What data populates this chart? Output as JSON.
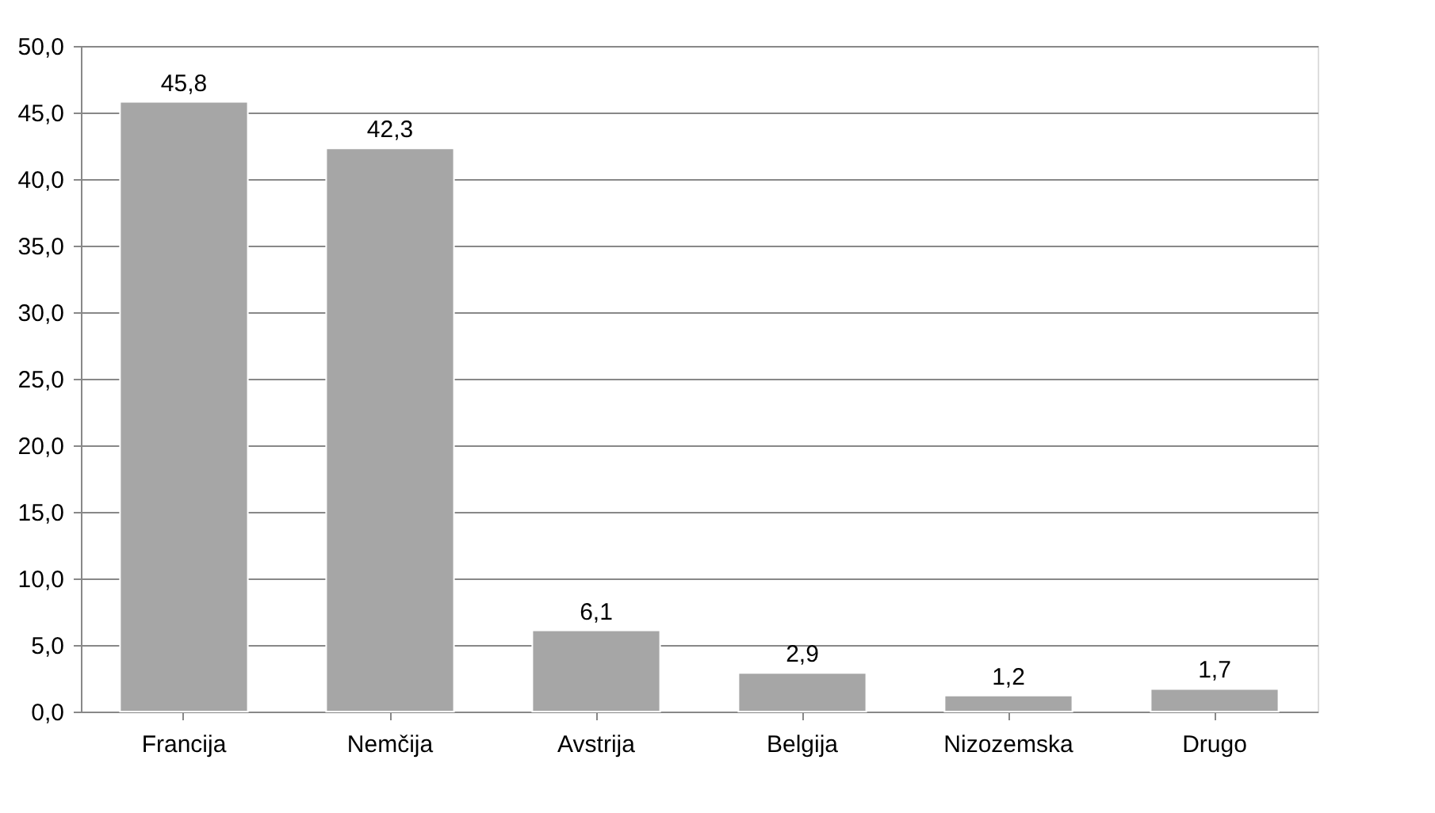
{
  "chart_data": {
    "type": "bar",
    "categories": [
      "Francija",
      "Nemčija",
      "Avstrija",
      "Belgija",
      "Nizozemska",
      "Drugo"
    ],
    "values": [
      45.8,
      42.3,
      6.1,
      2.9,
      1.2,
      1.7
    ],
    "value_labels": [
      "45,8",
      "42,3",
      "6,1",
      "2,9",
      "1,2",
      "1,7"
    ],
    "color": "#a6a6a6",
    "ylim": [
      0,
      50
    ],
    "yticks": [
      {
        "value": 0,
        "label": "0,0"
      },
      {
        "value": 5,
        "label": "5,0"
      },
      {
        "value": 10,
        "label": "10,0"
      },
      {
        "value": 15,
        "label": "15,0"
      },
      {
        "value": 20,
        "label": "20,0"
      },
      {
        "value": 25,
        "label": "25,0"
      },
      {
        "value": 30,
        "label": "30,0"
      },
      {
        "value": 35,
        "label": "35,0"
      },
      {
        "value": 40,
        "label": "40,0"
      },
      {
        "value": 45,
        "label": "45,0"
      },
      {
        "value": 50,
        "label": "50,0"
      }
    ],
    "grid": "y"
  }
}
